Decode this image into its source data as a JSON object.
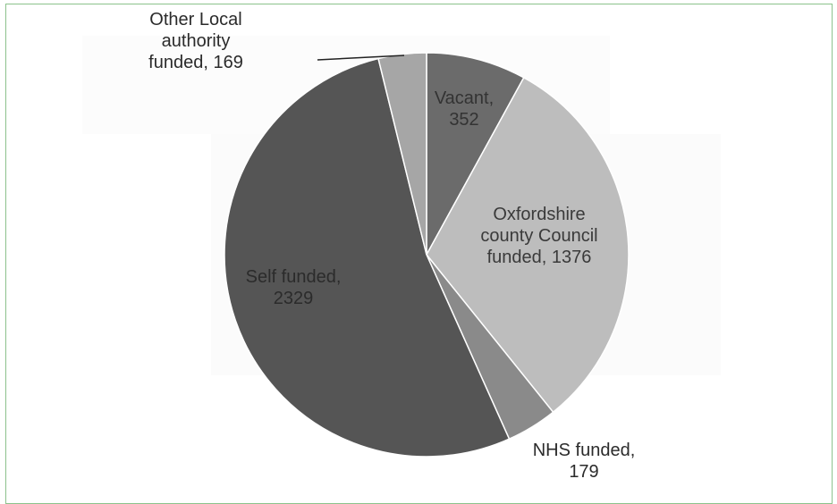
{
  "chart_data": {
    "type": "pie",
    "title": "",
    "slices": [
      {
        "label": "Vacant",
        "value": 352,
        "color": "#6b6b6b",
        "text_color": "#333333",
        "label_lines": [
          "Vacant,",
          "352"
        ]
      },
      {
        "label": "Oxfordshire county Council funded",
        "value": 1376,
        "color": "#bdbdbd",
        "text_color": "#3a3a3a",
        "label_lines": [
          "Oxfordshire",
          "county Council",
          "funded, 1376"
        ]
      },
      {
        "label": "NHS funded",
        "value": 179,
        "color": "#8a8a8a",
        "text_color": "#2b2b2b",
        "label_lines": [
          "NHS funded,",
          "179"
        ]
      },
      {
        "label": "Self funded",
        "value": 2329,
        "color": "#555555",
        "text_color": "#2b2b2b",
        "label_lines": [
          "Self funded,",
          "2329"
        ]
      },
      {
        "label": "Other Local authority funded",
        "value": 169,
        "color": "#a6a6a6",
        "text_color": "#2b2b2b",
        "label_lines": [
          "Other Local",
          "authority",
          "funded, 169"
        ]
      }
    ],
    "start_angle": "12 o'clock",
    "direction": "clockwise",
    "legend": "none"
  }
}
